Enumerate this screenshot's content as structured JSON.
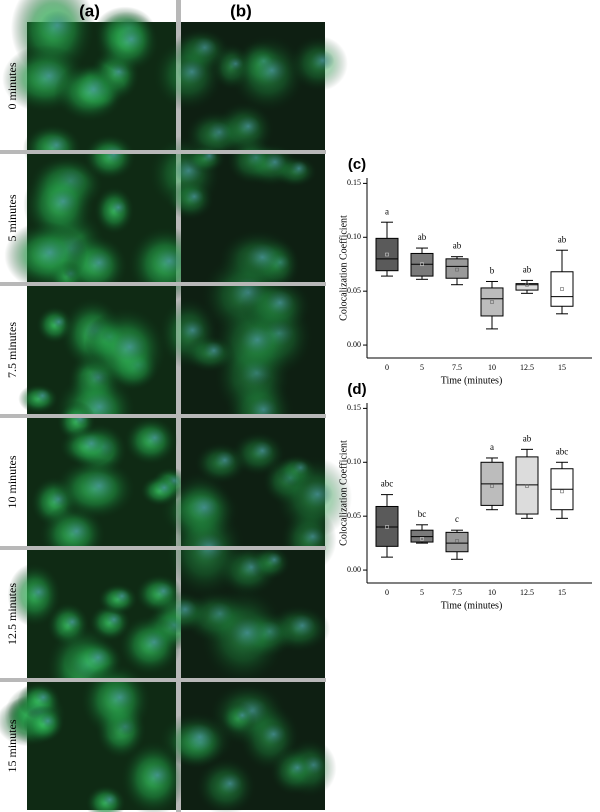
{
  "panels": {
    "column_labels": [
      "(a)",
      "(b)"
    ],
    "row_labels": [
      "0 minutes",
      "5 minutes",
      "7.5 minutes",
      "10 minutes",
      "12.5 minutes",
      "15 minutes"
    ]
  },
  "chart_data": [
    {
      "type": "box",
      "label": "(c)",
      "ylabel": "Colocalization Coefficient",
      "xlabel": "Time (minutes)",
      "categories": [
        "0",
        "5",
        "7.5",
        "10",
        "12.5",
        "15"
      ],
      "ylim": [
        -0.012,
        0.155
      ],
      "yticks": [
        {
          "value": 0,
          "label": "0.00"
        },
        {
          "value": 0.05,
          "label": "0.05"
        },
        {
          "value": 0.1,
          "label": "0.10"
        },
        {
          "value": 0.15,
          "label": "0.15"
        }
      ],
      "min": [
        0.064,
        0.061,
        0.056,
        0.015,
        0.048,
        0.029
      ],
      "q1": [
        0.069,
        0.064,
        0.062,
        0.027,
        0.051,
        0.036
      ],
      "median": [
        0.08,
        0.075,
        0.073,
        0.043,
        0.056,
        0.045
      ],
      "q3": [
        0.099,
        0.085,
        0.08,
        0.053,
        0.057,
        0.068
      ],
      "max": [
        0.114,
        0.09,
        0.082,
        0.059,
        0.06,
        0.088
      ],
      "mean": [
        0.084,
        0.075,
        0.07,
        0.04,
        0.056,
        0.052
      ],
      "annotations": [
        "a",
        "ab",
        "ab",
        "b",
        "ab",
        "ab"
      ],
      "colors": [
        "#5a5a5a",
        "#7a7a7a",
        "#9a9a9a",
        "#bcbcbc",
        "#dcdcdc",
        "#ffffff"
      ]
    },
    {
      "type": "box",
      "label": "(d)",
      "ylabel": "Colocalization Coefficient",
      "xlabel": "Time (minutes)",
      "categories": [
        "0",
        "5",
        "7.5",
        "10",
        "12.5",
        "15"
      ],
      "ylim": [
        -0.012,
        0.155
      ],
      "yticks": [
        {
          "value": 0,
          "label": "0.00"
        },
        {
          "value": 0.05,
          "label": "0.05"
        },
        {
          "value": 0.1,
          "label": "0.10"
        },
        {
          "value": 0.15,
          "label": "0.15"
        }
      ],
      "min": [
        0.012,
        0.025,
        0.01,
        0.056,
        0.048,
        0.048
      ],
      "q1": [
        0.022,
        0.026,
        0.017,
        0.06,
        0.052,
        0.056
      ],
      "median": [
        0.04,
        0.031,
        0.025,
        0.08,
        0.079,
        0.075
      ],
      "q3": [
        0.059,
        0.037,
        0.035,
        0.1,
        0.105,
        0.094
      ],
      "max": [
        0.07,
        0.042,
        0.037,
        0.104,
        0.112,
        0.1
      ],
      "mean": [
        0.04,
        0.029,
        0.027,
        0.078,
        0.078,
        0.073
      ],
      "annotations": [
        "abc",
        "bc",
        "c",
        "a",
        "ab",
        "abc"
      ],
      "colors": [
        "#5a5a5a",
        "#7a7a7a",
        "#9a9a9a",
        "#bcbcbc",
        "#dcdcdc",
        "#ffffff"
      ]
    }
  ]
}
